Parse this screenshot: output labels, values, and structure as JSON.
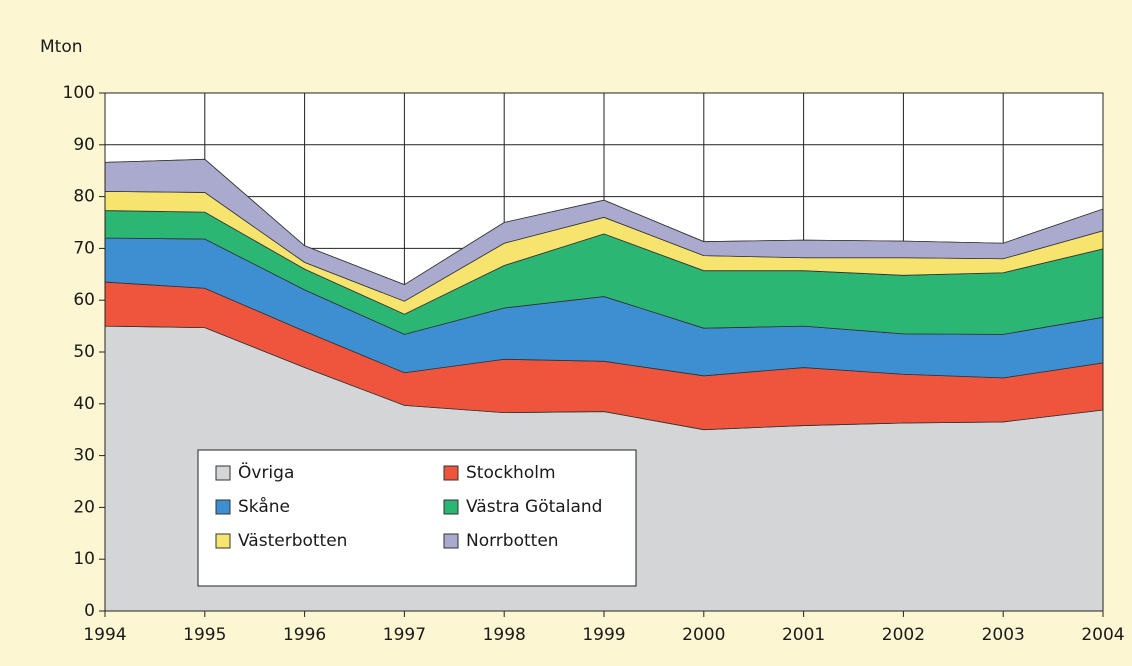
{
  "chart_data": {
    "type": "area",
    "stacked": true,
    "y_axis_label": "Mton",
    "x": [
      1994,
      1995,
      1996,
      1997,
      1998,
      1999,
      2000,
      2001,
      2002,
      2003,
      2004
    ],
    "xlim": [
      1994,
      2004
    ],
    "xticks": [
      1994,
      1995,
      1996,
      1997,
      1998,
      1999,
      2000,
      2001,
      2002,
      2003,
      2004
    ],
    "ylim": [
      0,
      100
    ],
    "yticks": [
      0,
      10,
      20,
      30,
      40,
      50,
      60,
      70,
      80,
      90,
      100
    ],
    "grid": true,
    "legend_position": "lower left",
    "series": [
      {
        "name": "Övriga",
        "color": "#d4d5d7",
        "values": [
          55,
          54.7,
          47,
          39.7,
          38.3,
          38.5,
          35,
          35.8,
          36.3,
          36.5,
          38.8
        ]
      },
      {
        "name": "Stockholm",
        "color": "#ef553c",
        "values": [
          8.5,
          7.6,
          7,
          6.3,
          10.3,
          9.7,
          10.4,
          11.2,
          9.4,
          8.5,
          9.1
        ]
      },
      {
        "name": "Skåne",
        "color": "#3d8fd1",
        "values": [
          8.5,
          9.5,
          8,
          7.4,
          9.9,
          12.5,
          9.2,
          8,
          7.8,
          8.4,
          8.8
        ]
      },
      {
        "name": "Västra Götaland",
        "color": "#2bb673",
        "values": [
          5.3,
          5.2,
          4,
          3.9,
          8.2,
          12.1,
          11.1,
          10.7,
          11.3,
          11.9,
          13.2
        ]
      },
      {
        "name": "Västerbotten",
        "color": "#f7e46e",
        "values": [
          3.7,
          3.8,
          1.3,
          2.5,
          4.3,
          3.2,
          2.9,
          2.5,
          3.4,
          2.7,
          3.5
        ]
      },
      {
        "name": "Norrbotten",
        "color": "#aaaacf",
        "values": [
          5.6,
          6.4,
          3.2,
          3.2,
          4,
          3.3,
          2.7,
          3.4,
          3.2,
          3,
          4.2
        ]
      }
    ]
  }
}
